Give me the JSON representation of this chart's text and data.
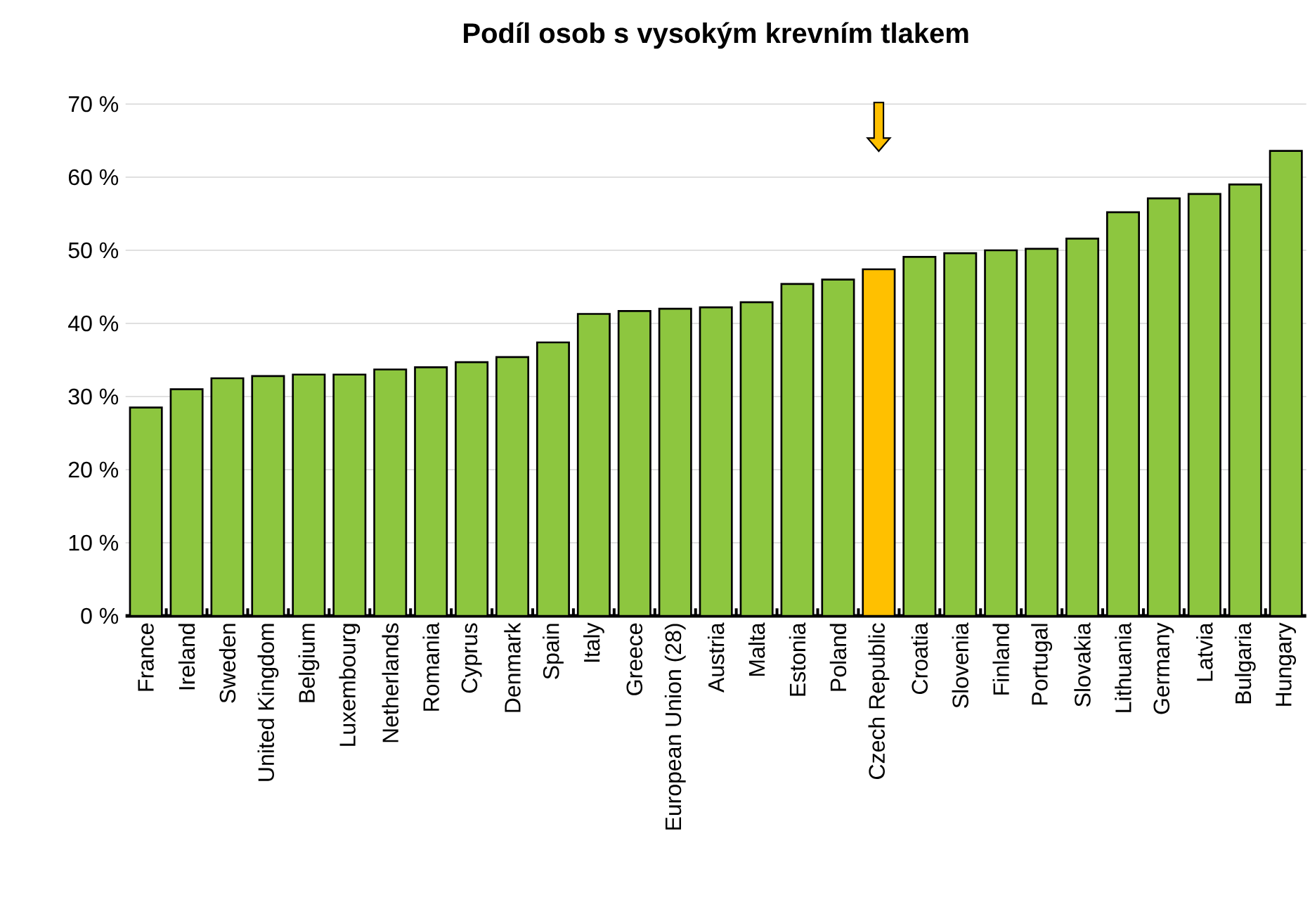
{
  "chart_data": {
    "type": "bar",
    "title": "Podíl osob s vysokým krevním tlakem",
    "categories": [
      "France",
      "Ireland",
      "Sweden",
      "United Kingdom",
      "Belgium",
      "Luxembourg",
      "Netherlands",
      "Romania",
      "Cyprus",
      "Denmark",
      "Spain",
      "Italy",
      "Greece",
      "European Union (28)",
      "Austria",
      "Malta",
      "Estonia",
      "Poland",
      "Czech Republic",
      "Croatia",
      "Slovenia",
      "Finland",
      "Portugal",
      "Slovakia",
      "Lithuania",
      "Germany",
      "Latvia",
      "Bulgaria",
      "Hungary"
    ],
    "values": [
      28.5,
      31,
      32.5,
      32.8,
      33,
      33,
      33.7,
      34,
      34.7,
      35.4,
      37.4,
      41.3,
      41.7,
      42,
      42.2,
      42.9,
      45.4,
      46,
      47.4,
      49.1,
      49.6,
      50,
      50.2,
      51.6,
      55.2,
      57.1,
      57.7,
      59,
      63.6
    ],
    "colors": [
      "#8dc63f",
      "#8dc63f",
      "#8dc63f",
      "#8dc63f",
      "#8dc63f",
      "#8dc63f",
      "#8dc63f",
      "#8dc63f",
      "#8dc63f",
      "#8dc63f",
      "#8dc63f",
      "#8dc63f",
      "#8dc63f",
      "#8dc63f",
      "#8dc63f",
      "#8dc63f",
      "#8dc63f",
      "#8dc63f",
      "#ffc000",
      "#8dc63f",
      "#8dc63f",
      "#8dc63f",
      "#8dc63f",
      "#8dc63f",
      "#8dc63f",
      "#8dc63f",
      "#8dc63f",
      "#8dc63f",
      "#8dc63f"
    ],
    "ylim": [
      0,
      70
    ],
    "yticks": [
      {
        "value": 0,
        "label": "0 %"
      },
      {
        "value": 10,
        "label": "10 %"
      },
      {
        "value": 20,
        "label": "20 %"
      },
      {
        "value": 30,
        "label": "30 %"
      },
      {
        "value": 40,
        "label": "40 %"
      },
      {
        "value": 50,
        "label": "50 %"
      },
      {
        "value": 60,
        "label": "60 %"
      },
      {
        "value": 70,
        "label": "70 %"
      }
    ],
    "grid": "y"
  }
}
